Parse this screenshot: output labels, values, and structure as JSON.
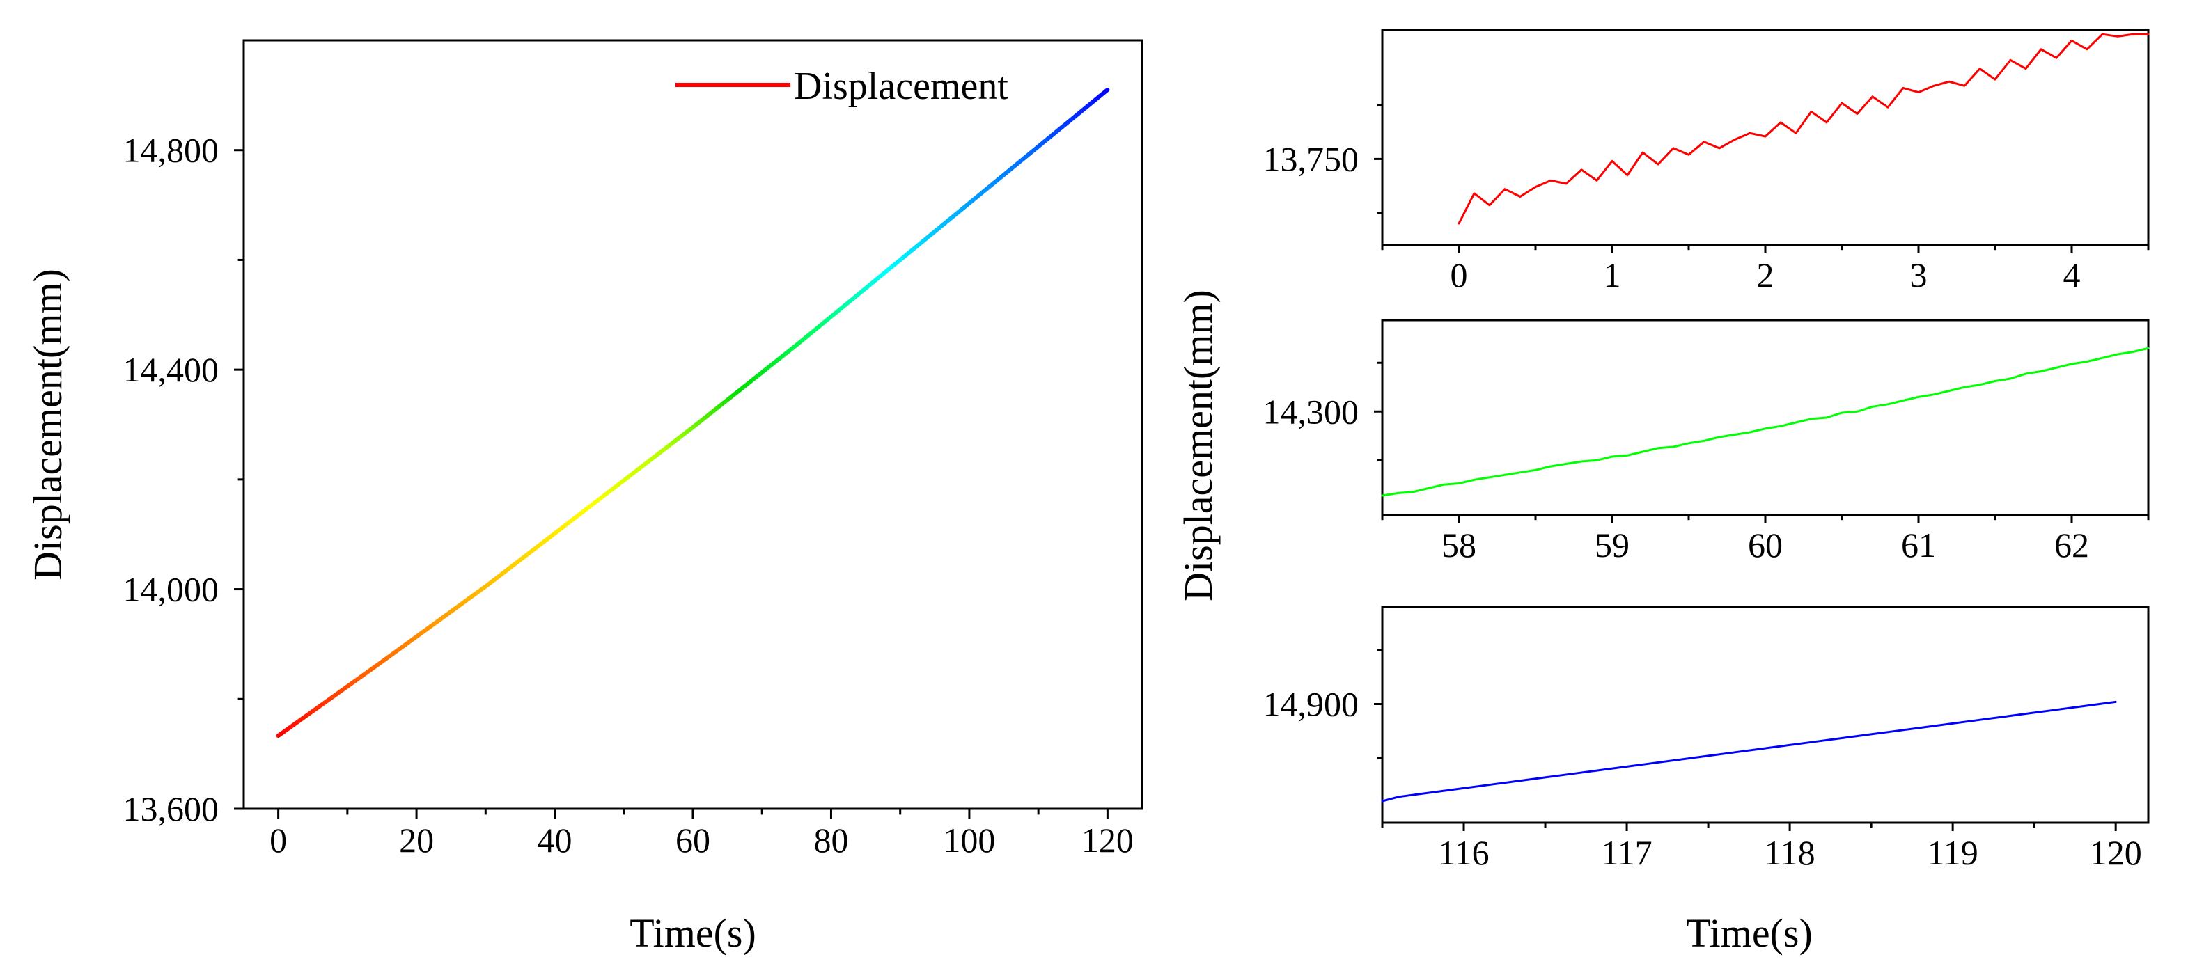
{
  "chart_data": [
    {
      "id": "main",
      "type": "line",
      "title": "",
      "xlabel": "Time(s)",
      "ylabel": "Displacement(mm)",
      "xlim": [
        -5,
        125
      ],
      "ylim": [
        13600,
        15000
      ],
      "xticks": [
        0,
        20,
        40,
        60,
        80,
        100,
        120
      ],
      "xtick_labels": [
        "0",
        "20",
        "40",
        "60",
        "80",
        "100",
        "120"
      ],
      "yticks": [
        13600,
        14000,
        14400,
        14800
      ],
      "ytick_labels": [
        "13,600",
        "14,000",
        "14,400",
        "14,800"
      ],
      "legend": "top-right",
      "series": [
        {
          "name": "Displacement",
          "legend_color": "#ff0000",
          "gradient": [
            "#ff0000",
            "#ff5a00",
            "#ff9a00",
            "#ffd000",
            "#ffff00",
            "#b4ff00",
            "#00dd00",
            "#00ff66",
            "#00ffff",
            "#00aaff",
            "#0064ff",
            "#0000ff"
          ],
          "x": [
            0,
            15,
            30,
            45,
            60,
            75,
            90,
            105,
            120
          ],
          "y": [
            13733,
            13868,
            14005,
            14150,
            14295,
            14445,
            14600,
            14755,
            14910
          ]
        }
      ]
    },
    {
      "id": "zoom-top",
      "type": "line",
      "xlabel": "",
      "ylabel": "",
      "xlim": [
        -0.5,
        4.5
      ],
      "ylim": [
        13670,
        13870
      ],
      "xticks": [
        0,
        1,
        2,
        3,
        4
      ],
      "xtick_labels": [
        "0",
        "1",
        "2",
        "3",
        "4"
      ],
      "yticks": [
        13750
      ],
      "ytick_labels": [
        "13,750"
      ],
      "series": [
        {
          "name": "Displacement",
          "color": "#ff0000",
          "x": [
            0,
            0.1,
            0.2,
            0.3,
            0.4,
            0.5,
            0.6,
            0.7,
            0.8,
            0.9,
            1.0,
            1.1,
            1.2,
            1.3,
            1.4,
            1.5,
            1.6,
            1.7,
            1.8,
            1.9,
            2.0,
            2.1,
            2.2,
            2.3,
            2.4,
            2.5,
            2.6,
            2.7,
            2.8,
            2.9,
            3.0,
            3.1,
            3.2,
            3.3,
            3.4,
            3.5,
            3.6,
            3.7,
            3.8,
            3.9,
            4.0,
            4.1,
            4.2,
            4.3,
            4.4,
            4.5
          ],
          "y": [
            13690,
            13718,
            13707,
            13722,
            13715,
            13724,
            13730,
            13727,
            13740,
            13730,
            13748,
            13735,
            13756,
            13745,
            13760,
            13754,
            13766,
            13760,
            13768,
            13774,
            13771,
            13784,
            13774,
            13794,
            13784,
            13802,
            13792,
            13808,
            13798,
            13816,
            13812,
            13818,
            13822,
            13818,
            13834,
            13824,
            13842,
            13834,
            13852,
            13844,
            13860,
            13852,
            13866,
            13864,
            13866,
            13866
          ]
        }
      ]
    },
    {
      "id": "zoom-middle",
      "type": "line",
      "xlabel": "",
      "ylabel": "",
      "xlim": [
        57.5,
        62.5
      ],
      "ylim": [
        14215,
        14375
      ],
      "xticks": [
        58,
        59,
        60,
        61,
        62
      ],
      "xtick_labels": [
        "58",
        "59",
        "60",
        "61",
        "62"
      ],
      "yticks": [
        14300
      ],
      "ytick_labels": [
        "14,300"
      ],
      "series": [
        {
          "name": "Displacement",
          "color": "#00ff00",
          "x": [
            57.5,
            57.6,
            57.7,
            57.8,
            57.9,
            58.0,
            58.1,
            58.2,
            58.3,
            58.4,
            58.5,
            58.6,
            58.7,
            58.8,
            58.9,
            59.0,
            59.1,
            59.2,
            59.3,
            59.4,
            59.5,
            59.6,
            59.7,
            59.8,
            59.9,
            60.0,
            60.1,
            60.2,
            60.3,
            60.4,
            60.5,
            60.6,
            60.7,
            60.8,
            60.9,
            61.0,
            61.1,
            61.2,
            61.3,
            61.4,
            61.5,
            61.6,
            61.7,
            61.8,
            61.9,
            62.0,
            62.1,
            62.2,
            62.3,
            62.4,
            62.5
          ],
          "y": [
            14231,
            14233,
            14234,
            14237,
            14240,
            14241,
            14244,
            14246,
            14248,
            14250,
            14252,
            14255,
            14257,
            14259,
            14260,
            14263,
            14264,
            14267,
            14270,
            14271,
            14274,
            14276,
            14279,
            14281,
            14283,
            14286,
            14288,
            14291,
            14294,
            14295,
            14299,
            14300,
            14304,
            14306,
            14309,
            14312,
            14314,
            14317,
            14320,
            14322,
            14325,
            14327,
            14331,
            14333,
            14336,
            14339,
            14341,
            14344,
            14347,
            14349,
            14352
          ]
        }
      ]
    },
    {
      "id": "zoom-bottom",
      "type": "line",
      "xlabel": "Time(s)",
      "ylabel": "",
      "xlim": [
        115.5,
        120.2
      ],
      "ylim": [
        14845,
        14945
      ],
      "xticks": [
        116,
        117,
        118,
        119,
        120
      ],
      "xtick_labels": [
        "116",
        "117",
        "118",
        "119",
        "120"
      ],
      "yticks": [
        14900
      ],
      "ytick_labels": [
        "14,900"
      ],
      "series": [
        {
          "name": "Displacement",
          "color": "#0000ff",
          "x": [
            115.5,
            115.6,
            115.7,
            115.8,
            115.9,
            116.0,
            116.1,
            116.2,
            116.3,
            116.4,
            116.5,
            116.6,
            116.7,
            116.8,
            116.9,
            117.0,
            117.1,
            117.2,
            117.3,
            117.4,
            117.5,
            117.6,
            117.7,
            117.8,
            117.9,
            118.0,
            118.1,
            118.2,
            118.3,
            118.4,
            118.5,
            118.6,
            118.7,
            118.8,
            118.9,
            119.0,
            119.1,
            119.2,
            119.3,
            119.4,
            119.5,
            119.6,
            119.7,
            119.8,
            119.9,
            120.0
          ],
          "y": [
            14855,
            14857,
            14858,
            14859,
            14860,
            14861,
            14862,
            14863,
            14864,
            14865,
            14866,
            14867,
            14868,
            14869,
            14870,
            14871,
            14872,
            14873,
            14874,
            14875,
            14876,
            14877,
            14878,
            14879,
            14880,
            14881,
            14882,
            14883,
            14884,
            14885,
            14886,
            14887,
            14888,
            14889,
            14890,
            14891,
            14892,
            14893,
            14894,
            14895,
            14896,
            14897,
            14898,
            14899,
            14900,
            14901
          ]
        }
      ]
    }
  ],
  "labels": {
    "right_ylabel": "Displacement(mm)"
  }
}
